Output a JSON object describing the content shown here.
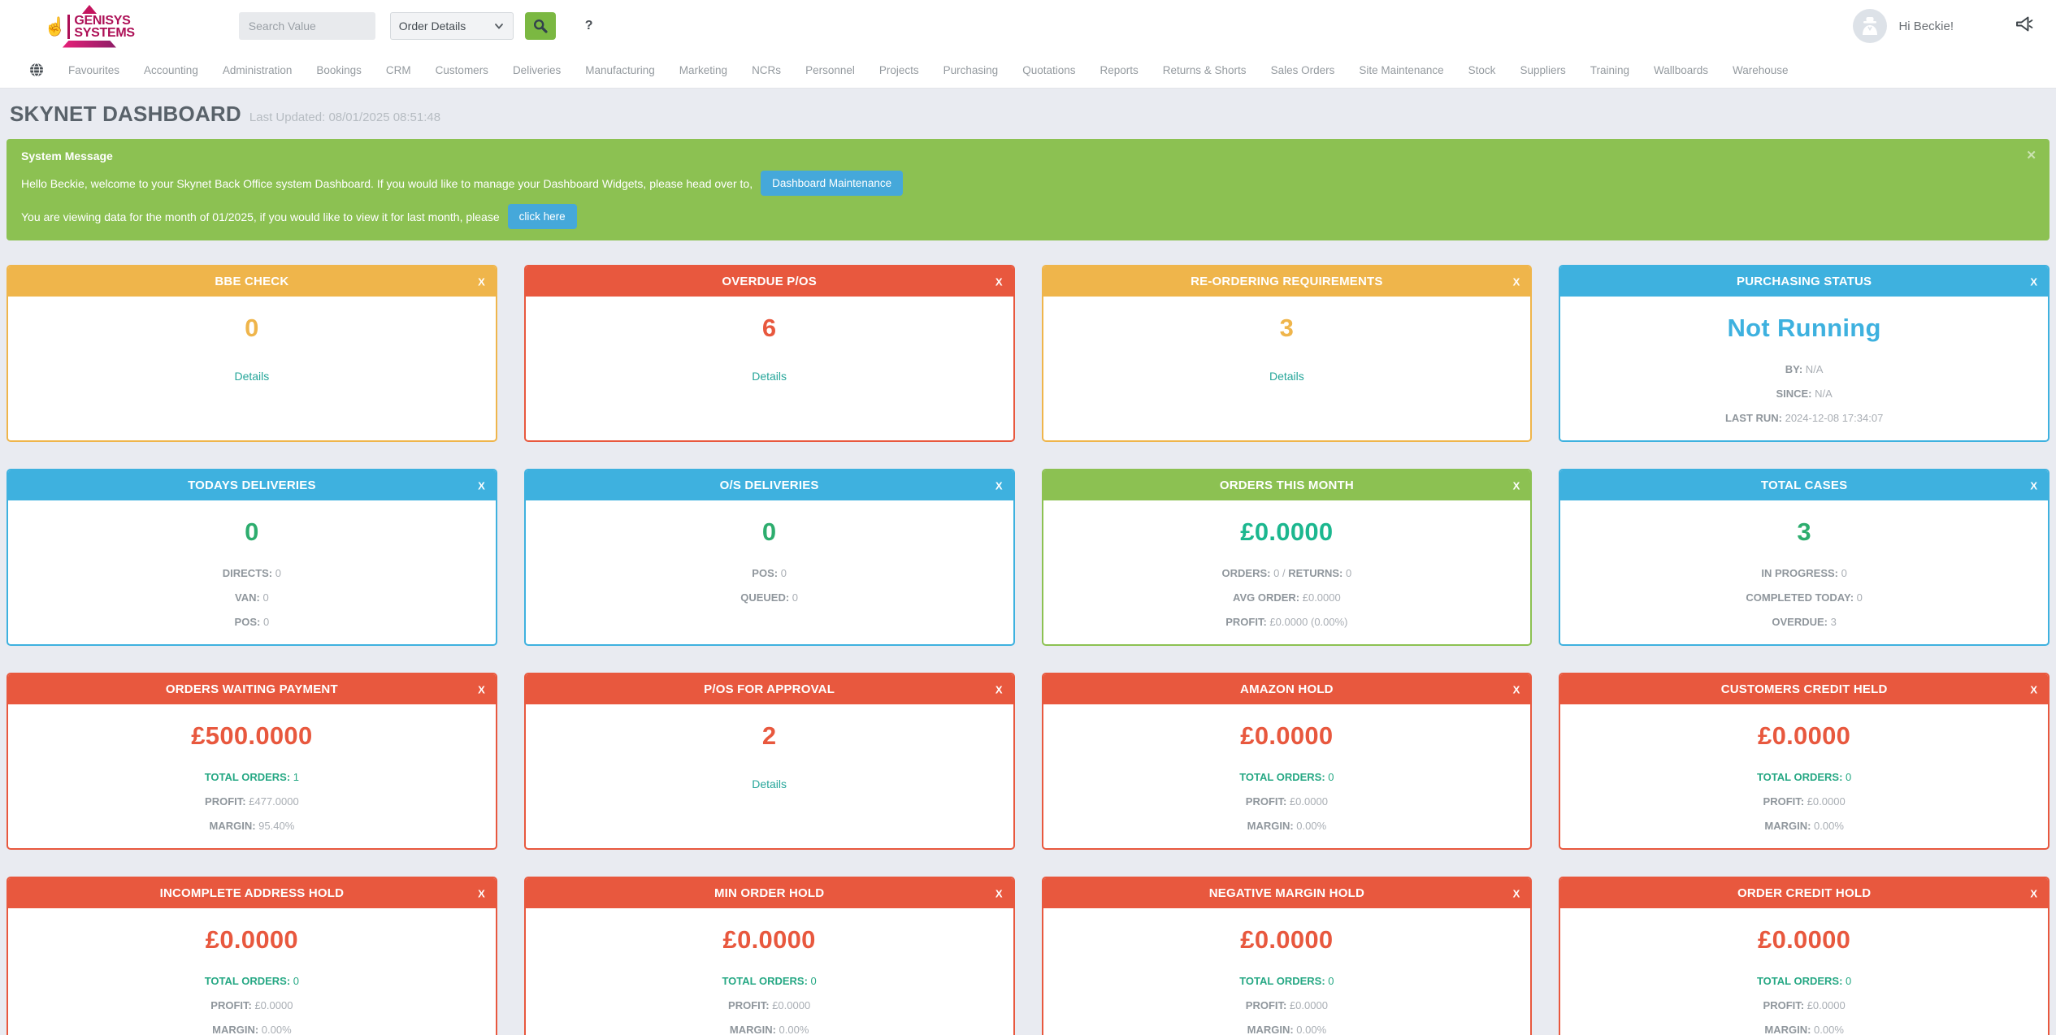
{
  "brand": {
    "line1": "GENISYS",
    "line2": "SYSTEMS"
  },
  "topbar": {
    "search_placeholder": "Search Value",
    "search_category": "Order Details",
    "help_label": "?",
    "greeting": "Hi Beckie!"
  },
  "nav": {
    "items": [
      "Favourites",
      "Accounting",
      "Administration",
      "Bookings",
      "CRM",
      "Customers",
      "Deliveries",
      "Manufacturing",
      "Marketing",
      "NCRs",
      "Personnel",
      "Projects",
      "Purchasing",
      "Quotations",
      "Reports",
      "Returns & Shorts",
      "Sales Orders",
      "Site Maintenance",
      "Stock",
      "Suppliers",
      "Training",
      "Wallboards",
      "Warehouse"
    ]
  },
  "page": {
    "title": "SKYNET DASHBOARD",
    "last_updated": "Last Updated: 08/01/2025 08:51:48"
  },
  "banner": {
    "title": "System Message",
    "line1": "Hello Beckie, welcome to your Skynet Back Office system Dashboard. If you would like to manage your Dashboard Widgets, please head over to,",
    "line1_button": "Dashboard Maintenance",
    "line2": "You are viewing data for the month of 01/2025, if you would like to view it for last month, please",
    "line2_button": "click here",
    "close": "✕"
  },
  "ui": {
    "widget_close": "X"
  },
  "colors": {
    "orange": "#efb54b",
    "red": "#e8583e",
    "blue": "#3eb1df",
    "green": "#8cc152",
    "value_green": "#2dad6e",
    "value_teal": "#1cb78f",
    "stat_teal": "#26a884",
    "link_teal": "#26a69a",
    "button_blue": "#45a8da",
    "search_green": "#7bb842"
  },
  "widgets": [
    {
      "title": "BBE CHECK",
      "theme": "#efb54b",
      "value": "0",
      "value_color": "#efb54b",
      "link": "Details",
      "lines": []
    },
    {
      "title": "OVERDUE P/OS",
      "theme": "#e8583e",
      "value": "6",
      "value_color": "#e8583e",
      "link": "Details",
      "lines": []
    },
    {
      "title": "RE-ORDERING REQUIREMENTS",
      "theme": "#efb54b",
      "value": "3",
      "value_color": "#efb54b",
      "link": "Details",
      "lines": []
    },
    {
      "title": "PURCHASING STATUS",
      "theme": "#3eb1df",
      "value": "Not Running",
      "value_color": "#3eb1df",
      "lines": [
        {
          "label": "BY:",
          "value": "N/A"
        },
        {
          "label": "SINCE:",
          "value": "N/A"
        },
        {
          "label": "LAST RUN:",
          "value": "2024-12-08 17:34:07"
        }
      ]
    },
    {
      "title": "TODAYS DELIVERIES",
      "theme": "#3eb1df",
      "value": "0",
      "value_color": "#2dad6e",
      "lines": [
        {
          "label": "DIRECTS:",
          "value": "0"
        },
        {
          "label": "VAN:",
          "value": "0"
        },
        {
          "label": "POS:",
          "value": "0"
        }
      ]
    },
    {
      "title": "O/S DELIVERIES",
      "theme": "#3eb1df",
      "value": "0",
      "value_color": "#2dad6e",
      "lines": [
        {
          "label": "POS:",
          "value": "0"
        },
        {
          "label": "QUEUED:",
          "value": "0"
        }
      ]
    },
    {
      "title": "ORDERS THIS MONTH",
      "theme": "#8cc152",
      "value": "£0.0000",
      "value_color": "#1cb78f",
      "lines": [
        {
          "label": "ORDERS:",
          "value": "0 /",
          "label2": "RETURNS:",
          "value2": "0"
        },
        {
          "label": "AVG ORDER:",
          "value": "£0.0000"
        },
        {
          "label": "PROFIT:",
          "value": "£0.0000 (0.00%)"
        }
      ]
    },
    {
      "title": "TOTAL CASES",
      "theme": "#3eb1df",
      "value": "3",
      "value_color": "#2dad6e",
      "lines": [
        {
          "label": "IN PROGRESS:",
          "value": "0"
        },
        {
          "label": "COMPLETED TODAY:",
          "value": "0"
        },
        {
          "label": "OVERDUE:",
          "value": "3"
        }
      ]
    },
    {
      "title": "ORDERS WAITING PAYMENT",
      "theme": "#e8583e",
      "value": "£500.0000",
      "value_color": "#e8583e",
      "lines": [
        {
          "label": "TOTAL ORDERS:",
          "value": "1",
          "highlight": true
        },
        {
          "label": "PROFIT:",
          "value": "£477.0000"
        },
        {
          "label": "MARGIN:",
          "value": "95.40%"
        }
      ]
    },
    {
      "title": "P/OS FOR APPROVAL",
      "theme": "#e8583e",
      "value": "2",
      "value_color": "#e8583e",
      "link": "Details",
      "lines": []
    },
    {
      "title": "AMAZON HOLD",
      "theme": "#e8583e",
      "value": "£0.0000",
      "value_color": "#e8583e",
      "lines": [
        {
          "label": "TOTAL ORDERS:",
          "value": "0",
          "highlight": true
        },
        {
          "label": "PROFIT:",
          "value": "£0.0000"
        },
        {
          "label": "MARGIN:",
          "value": "0.00%"
        }
      ]
    },
    {
      "title": "CUSTOMERS CREDIT HELD",
      "theme": "#e8583e",
      "value": "£0.0000",
      "value_color": "#e8583e",
      "lines": [
        {
          "label": "TOTAL ORDERS:",
          "value": "0",
          "highlight": true
        },
        {
          "label": "PROFIT:",
          "value": "£0.0000"
        },
        {
          "label": "MARGIN:",
          "value": "0.00%"
        }
      ]
    },
    {
      "title": "INCOMPLETE ADDRESS HOLD",
      "theme": "#e8583e",
      "value": "£0.0000",
      "value_color": "#e8583e",
      "lines": [
        {
          "label": "TOTAL ORDERS:",
          "value": "0",
          "highlight": true
        },
        {
          "label": "PROFIT:",
          "value": "£0.0000"
        },
        {
          "label": "MARGIN:",
          "value": "0.00%"
        }
      ]
    },
    {
      "title": "MIN ORDER HOLD",
      "theme": "#e8583e",
      "value": "£0.0000",
      "value_color": "#e8583e",
      "lines": [
        {
          "label": "TOTAL ORDERS:",
          "value": "0",
          "highlight": true
        },
        {
          "label": "PROFIT:",
          "value": "£0.0000"
        },
        {
          "label": "MARGIN:",
          "value": "0.00%"
        }
      ]
    },
    {
      "title": "NEGATIVE MARGIN HOLD",
      "theme": "#e8583e",
      "value": "£0.0000",
      "value_color": "#e8583e",
      "lines": [
        {
          "label": "TOTAL ORDERS:",
          "value": "0",
          "highlight": true
        },
        {
          "label": "PROFIT:",
          "value": "£0.0000"
        },
        {
          "label": "MARGIN:",
          "value": "0.00%"
        }
      ]
    },
    {
      "title": "ORDER CREDIT HOLD",
      "theme": "#e8583e",
      "value": "£0.0000",
      "value_color": "#e8583e",
      "lines": [
        {
          "label": "TOTAL ORDERS:",
          "value": "0",
          "highlight": true
        },
        {
          "label": "PROFIT:",
          "value": "£0.0000"
        },
        {
          "label": "MARGIN:",
          "value": "0.00%"
        }
      ]
    }
  ]
}
